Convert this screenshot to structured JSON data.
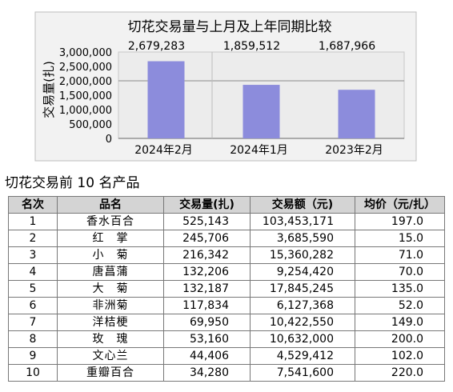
{
  "chart_data": {
    "type": "bar",
    "title": "切花交易量与上月及上年同期比较",
    "ylabel": "交易量(扎)",
    "xlabel": "",
    "categories": [
      "2024年2月",
      "2024年1月",
      "2023年2月"
    ],
    "values": [
      2679283,
      1859512,
      1687966
    ],
    "data_labels": [
      "2,679,283",
      "1,859,512",
      "1,687,966"
    ],
    "yticks": [
      0,
      500000,
      1000000,
      1500000,
      2000000,
      2500000,
      3000000
    ],
    "ytick_labels": [
      "0",
      "500,000",
      "1,000,000",
      "1,500,000",
      "2,000,000",
      "2,500,000",
      "3,000,000"
    ],
    "ylim": [
      0,
      3000000
    ],
    "grid": true,
    "legend": "none",
    "colors": {
      "bar": "#8c8cdc",
      "plot_bg": "#ececec",
      "frame_bg": "#f2f2f2"
    }
  },
  "table": {
    "title": "切花交易前 10 名产品",
    "headers": [
      "名次",
      "品名",
      "交易量(扎)",
      "交易额（元)",
      "均价（元/扎）"
    ],
    "rows": [
      [
        "1",
        "香水百合",
        "525,143",
        "103,453,171",
        "197.0"
      ],
      [
        "2",
        "红　掌",
        "245,706",
        "3,685,590",
        "15.0"
      ],
      [
        "3",
        "小　菊",
        "216,342",
        "15,360,282",
        "71.0"
      ],
      [
        "4",
        "唐菖蒲",
        "132,206",
        "9,254,420",
        "70.0"
      ],
      [
        "5",
        "大　菊",
        "132,187",
        "17,845,245",
        "135.0"
      ],
      [
        "6",
        "非洲菊",
        "117,834",
        "6,127,368",
        "52.0"
      ],
      [
        "7",
        "洋桔梗",
        "69,950",
        "10,422,550",
        "149.0"
      ],
      [
        "8",
        "玫　瑰",
        "53,160",
        "10,632,000",
        "200.0"
      ],
      [
        "9",
        "文心兰",
        "44,406",
        "4,529,412",
        "102.0"
      ],
      [
        "10",
        "重瓣百合",
        "34,280",
        "7,541,600",
        "220.0"
      ]
    ]
  }
}
